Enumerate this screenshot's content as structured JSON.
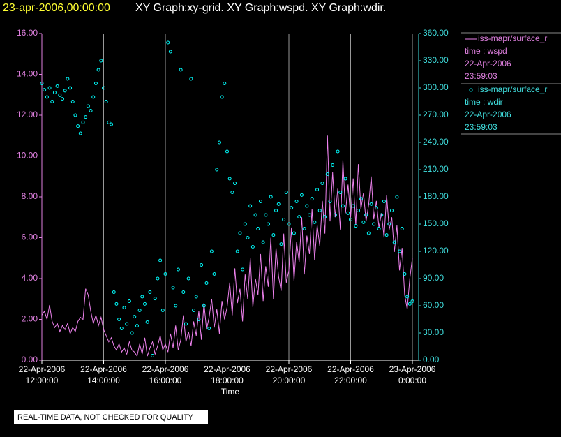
{
  "chart_data": {
    "type": "line_scatter",
    "title_date": "23-apr-2006,00:00:00",
    "title": "XY Graph:xy-grid.  XY Graph:wspd.  XY Graph:wdir.",
    "xlabel": "Time",
    "note": "REAL-TIME DATA, NOT CHECKED FOR QUALITY",
    "grid": true,
    "xlim": [
      "2006-04-22T12:00:00",
      "2006-04-23T00:00:00"
    ],
    "xticks": [
      {
        "value": "2006-04-22T12:00:00",
        "label": [
          "22-Apr-2006",
          "12:00:00"
        ]
      },
      {
        "value": "2006-04-22T14:00:00",
        "label": [
          "22-Apr-2006",
          "14:00:00"
        ]
      },
      {
        "value": "2006-04-22T16:00:00",
        "label": [
          "22-Apr-2006",
          "16:00:00"
        ]
      },
      {
        "value": "2006-04-22T18:00:00",
        "label": [
          "22-Apr-2006",
          "18:00:00"
        ]
      },
      {
        "value": "2006-04-22T20:00:00",
        "label": [
          "22-Apr-2006",
          "20:00:00"
        ]
      },
      {
        "value": "2006-04-22T22:00:00",
        "label": [
          "22-Apr-2006",
          "22:00:00"
        ]
      },
      {
        "value": "2006-04-23T00:00:00",
        "label": [
          "23-Apr-2006",
          "0:00:00"
        ]
      }
    ],
    "ylim": [
      0,
      16
    ],
    "yticks": [
      {
        "value": 0,
        "label": "0.00"
      },
      {
        "value": 2,
        "label": "2.00"
      },
      {
        "value": 4,
        "label": "4.00"
      },
      {
        "value": 6,
        "label": "6.00"
      },
      {
        "value": 8,
        "label": "8.00"
      },
      {
        "value": 10,
        "label": "10.00"
      },
      {
        "value": 12,
        "label": "12.00"
      },
      {
        "value": 14,
        "label": "14.00"
      },
      {
        "value": 16,
        "label": "16.00"
      }
    ],
    "y2lim": [
      0,
      360
    ],
    "y2ticks": [
      {
        "value": 0,
        "label": "0.00"
      },
      {
        "value": 30,
        "label": "30.00"
      },
      {
        "value": 60,
        "label": "60.00"
      },
      {
        "value": 90,
        "label": "90.00"
      },
      {
        "value": 120,
        "label": "120.00"
      },
      {
        "value": 150,
        "label": "150.00"
      },
      {
        "value": 180,
        "label": "180.00"
      },
      {
        "value": 210,
        "label": "210.00"
      },
      {
        "value": 240,
        "label": "240.00"
      },
      {
        "value": 270,
        "label": "270.00"
      },
      {
        "value": 300,
        "label": "300.00"
      },
      {
        "value": 330,
        "label": "330.00"
      },
      {
        "value": 360,
        "label": "360.00"
      }
    ],
    "x": [
      "2006-04-22T12:00:00",
      "2006-04-22T12:05:00",
      "2006-04-22T12:10:00",
      "2006-04-22T12:15:00",
      "2006-04-22T12:20:00",
      "2006-04-22T12:25:00",
      "2006-04-22T12:30:00",
      "2006-04-22T12:35:00",
      "2006-04-22T12:40:00",
      "2006-04-22T12:45:00",
      "2006-04-22T12:50:00",
      "2006-04-22T12:55:00",
      "2006-04-22T13:00:00",
      "2006-04-22T13:05:00",
      "2006-04-22T13:10:00",
      "2006-04-22T13:15:00",
      "2006-04-22T13:20:00",
      "2006-04-22T13:25:00",
      "2006-04-22T13:30:00",
      "2006-04-22T13:35:00",
      "2006-04-22T13:40:00",
      "2006-04-22T13:45:00",
      "2006-04-22T13:50:00",
      "2006-04-22T13:55:00",
      "2006-04-22T14:00:00",
      "2006-04-22T14:05:00",
      "2006-04-22T14:10:00",
      "2006-04-22T14:15:00",
      "2006-04-22T14:20:00",
      "2006-04-22T14:25:00",
      "2006-04-22T14:30:00",
      "2006-04-22T14:35:00",
      "2006-04-22T14:40:00",
      "2006-04-22T14:45:00",
      "2006-04-22T14:50:00",
      "2006-04-22T14:55:00",
      "2006-04-22T15:00:00",
      "2006-04-22T15:05:00",
      "2006-04-22T15:10:00",
      "2006-04-22T15:15:00",
      "2006-04-22T15:20:00",
      "2006-04-22T15:25:00",
      "2006-04-22T15:30:00",
      "2006-04-22T15:35:00",
      "2006-04-22T15:40:00",
      "2006-04-22T15:45:00",
      "2006-04-22T15:50:00",
      "2006-04-22T15:55:00",
      "2006-04-22T16:00:00",
      "2006-04-22T16:05:00",
      "2006-04-22T16:10:00",
      "2006-04-22T16:15:00",
      "2006-04-22T16:20:00",
      "2006-04-22T16:25:00",
      "2006-04-22T16:30:00",
      "2006-04-22T16:35:00",
      "2006-04-22T16:40:00",
      "2006-04-22T16:45:00",
      "2006-04-22T16:50:00",
      "2006-04-22T16:55:00",
      "2006-04-22T17:00:00",
      "2006-04-22T17:05:00",
      "2006-04-22T17:10:00",
      "2006-04-22T17:15:00",
      "2006-04-22T17:20:00",
      "2006-04-22T17:25:00",
      "2006-04-22T17:30:00",
      "2006-04-22T17:35:00",
      "2006-04-22T17:40:00",
      "2006-04-22T17:45:00",
      "2006-04-22T17:50:00",
      "2006-04-22T17:55:00",
      "2006-04-22T18:00:00",
      "2006-04-22T18:05:00",
      "2006-04-22T18:10:00",
      "2006-04-22T18:15:00",
      "2006-04-22T18:20:00",
      "2006-04-22T18:25:00",
      "2006-04-22T18:30:00",
      "2006-04-22T18:35:00",
      "2006-04-22T18:40:00",
      "2006-04-22T18:45:00",
      "2006-04-22T18:50:00",
      "2006-04-22T18:55:00",
      "2006-04-22T19:00:00",
      "2006-04-22T19:05:00",
      "2006-04-22T19:10:00",
      "2006-04-22T19:15:00",
      "2006-04-22T19:20:00",
      "2006-04-22T19:25:00",
      "2006-04-22T19:30:00",
      "2006-04-22T19:35:00",
      "2006-04-22T19:40:00",
      "2006-04-22T19:45:00",
      "2006-04-22T19:50:00",
      "2006-04-22T19:55:00",
      "2006-04-22T20:00:00",
      "2006-04-22T20:05:00",
      "2006-04-22T20:10:00",
      "2006-04-22T20:15:00",
      "2006-04-22T20:20:00",
      "2006-04-22T20:25:00",
      "2006-04-22T20:30:00",
      "2006-04-22T20:35:00",
      "2006-04-22T20:40:00",
      "2006-04-22T20:45:00",
      "2006-04-22T20:50:00",
      "2006-04-22T20:55:00",
      "2006-04-22T21:00:00",
      "2006-04-22T21:05:00",
      "2006-04-22T21:10:00",
      "2006-04-22T21:15:00",
      "2006-04-22T21:20:00",
      "2006-04-22T21:25:00",
      "2006-04-22T21:30:00",
      "2006-04-22T21:35:00",
      "2006-04-22T21:40:00",
      "2006-04-22T21:45:00",
      "2006-04-22T21:50:00",
      "2006-04-22T21:55:00",
      "2006-04-22T22:00:00",
      "2006-04-22T22:05:00",
      "2006-04-22T22:10:00",
      "2006-04-22T22:15:00",
      "2006-04-22T22:20:00",
      "2006-04-22T22:25:00",
      "2006-04-22T22:30:00",
      "2006-04-22T22:35:00",
      "2006-04-22T22:40:00",
      "2006-04-22T22:45:00",
      "2006-04-22T22:50:00",
      "2006-04-22T22:55:00",
      "2006-04-22T23:00:00",
      "2006-04-22T23:05:00",
      "2006-04-22T23:10:00",
      "2006-04-22T23:15:00",
      "2006-04-22T23:20:00",
      "2006-04-22T23:25:00",
      "2006-04-22T23:30:00",
      "2006-04-22T23:35:00",
      "2006-04-22T23:40:00",
      "2006-04-22T23:45:00",
      "2006-04-22T23:50:00",
      "2006-04-22T23:55:00",
      "2006-04-23T00:00:00"
    ],
    "series": [
      {
        "name": "iss-mapr/surface_r",
        "legend_info": [
          "time : wspd",
          "22-Apr-2006",
          "23:59:03"
        ],
        "kind": "line",
        "axis": "y",
        "color": "#ee82ee",
        "values": [
          2.2,
          2.4,
          2.0,
          2.7,
          1.9,
          1.6,
          1.8,
          1.4,
          1.7,
          1.5,
          1.8,
          1.3,
          1.6,
          1.4,
          1.9,
          2.1,
          2.0,
          3.5,
          3.2,
          2.4,
          1.8,
          2.2,
          1.7,
          2.1,
          1.5,
          1.2,
          0.9,
          1.1,
          0.7,
          0.5,
          0.8,
          0.4,
          0.6,
          0.3,
          0.9,
          0.5,
          0.4,
          0.2,
          0.8,
          0.3,
          1.1,
          0.2,
          0.6,
          0.9,
          0.3,
          0.7,
          1.2,
          0.5,
          0.8,
          0.4,
          1.3,
          0.6,
          1.7,
          0.5,
          1.0,
          2.2,
          0.9,
          1.4,
          0.7,
          1.9,
          1.2,
          2.4,
          1.0,
          2.8,
          1.5,
          2.1,
          3.0,
          1.6,
          2.5,
          1.3,
          2.9,
          2.0,
          2.6,
          3.8,
          2.2,
          4.5,
          2.8,
          3.5,
          1.9,
          4.2,
          3.0,
          5.0,
          2.6,
          4.0,
          3.2,
          5.2,
          2.9,
          4.6,
          3.6,
          6.0,
          3.0,
          5.5,
          4.1,
          3.4,
          6.2,
          3.8,
          4.4,
          6.5,
          3.9,
          5.8,
          4.8,
          7.0,
          4.2,
          6.1,
          5.2,
          7.4,
          4.9,
          6.6,
          5.6,
          7.8,
          6.2,
          11.0,
          6.8,
          9.2,
          7.0,
          8.4,
          6.4,
          9.8,
          7.2,
          8.6,
          7.0,
          8.9,
          6.6,
          9.6,
          7.4,
          8.2,
          6.8,
          7.6,
          9.0,
          6.9,
          7.8,
          6.5,
          7.2,
          6.0,
          8.1,
          6.4,
          7.0,
          5.3,
          6.6,
          4.4,
          5.5,
          3.2,
          2.5,
          4.0,
          5.0
        ]
      },
      {
        "name": "iss-mapr/surface_r",
        "legend_info": [
          "time : wdir",
          "22-Apr-2006",
          "23:59:03"
        ],
        "kind": "scatter",
        "axis": "y2",
        "color": "#00ffff",
        "values": [
          305,
          298,
          290,
          300,
          285,
          295,
          302,
          292,
          288,
          297,
          310,
          300,
          285,
          270,
          258,
          250,
          262,
          268,
          280,
          275,
          290,
          305,
          320,
          330,
          300,
          285,
          262,
          260,
          75,
          62,
          45,
          35,
          58,
          40,
          65,
          30,
          48,
          38,
          55,
          70,
          62,
          42,
          75,
          5,
          68,
          90,
          110,
          55,
          95,
          350,
          340,
          80,
          60,
          100,
          320,
          75,
          40,
          90,
          310,
          55,
          70,
          45,
          105,
          60,
          85,
          35,
          120,
          95,
          210,
          240,
          290,
          305,
          230,
          200,
          185,
          195,
          120,
          140,
          100,
          150,
          135,
          170,
          125,
          160,
          145,
          175,
          130,
          160,
          150,
          180,
          138,
          165,
          172,
          128,
          155,
          185,
          150,
          168,
          140,
          175,
          158,
          182,
          145,
          170,
          160,
          178,
          152,
          188,
          165,
          195,
          158,
          205,
          175,
          215,
          160,
          230,
          185,
          170,
          200,
          162,
          155,
          170,
          148,
          165,
          178,
          152,
          160,
          140,
          172,
          150,
          168,
          145,
          160,
          175,
          138,
          150,
          165,
          130,
          180,
          120,
          145,
          95,
          70,
          62,
          65
        ]
      }
    ]
  }
}
